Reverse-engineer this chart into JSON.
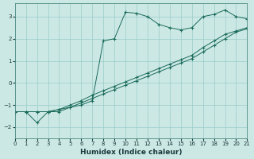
{
  "xlabel": "Humidex (Indice chaleur)",
  "bg_color": "#cce8e5",
  "grid_color": "#99ccc8",
  "line_color": "#1a6b5a",
  "xlim": [
    0,
    21
  ],
  "ylim": [
    -2.5,
    3.6
  ],
  "xticks": [
    0,
    1,
    2,
    3,
    4,
    5,
    6,
    7,
    8,
    9,
    10,
    11,
    12,
    13,
    14,
    15,
    16,
    17,
    18,
    19,
    20,
    21
  ],
  "yticks": [
    -2,
    -1,
    0,
    1,
    2,
    3
  ],
  "line1_x": [
    0,
    1,
    2,
    3,
    4,
    5,
    6,
    7,
    8,
    9,
    10,
    11,
    12,
    13,
    14,
    15,
    16,
    17,
    18,
    19,
    20,
    21
  ],
  "line1_y": [
    -1.3,
    -1.3,
    -1.3,
    -1.3,
    -1.2,
    -1.1,
    -0.9,
    -0.7,
    -0.5,
    -0.3,
    -0.1,
    0.1,
    0.3,
    0.5,
    0.7,
    0.9,
    1.1,
    1.4,
    1.7,
    2.0,
    2.3,
    2.45
  ],
  "line2_x": [
    0,
    1,
    2,
    3,
    4,
    5,
    6,
    7,
    8,
    9,
    10,
    11,
    12,
    13,
    14,
    15,
    16,
    17,
    18,
    19,
    20,
    21
  ],
  "line2_y": [
    -1.3,
    -1.3,
    -1.8,
    -1.3,
    -1.3,
    -1.1,
    -1.0,
    -0.8,
    1.9,
    2.0,
    3.2,
    3.15,
    3.0,
    2.65,
    2.5,
    2.4,
    2.5,
    3.0,
    3.1,
    3.3,
    3.0,
    2.9
  ],
  "line3_x": [
    0,
    1,
    2,
    3,
    4,
    5,
    6,
    7,
    8,
    9,
    10,
    11,
    12,
    13,
    14,
    15,
    16,
    17,
    18,
    19,
    20,
    21
  ],
  "line3_y": [
    -1.3,
    -1.3,
    -1.3,
    -1.3,
    -1.2,
    -1.0,
    -0.8,
    -0.55,
    -0.35,
    -0.15,
    0.05,
    0.25,
    0.45,
    0.65,
    0.85,
    1.05,
    1.25,
    1.6,
    1.9,
    2.2,
    2.35,
    2.5
  ]
}
